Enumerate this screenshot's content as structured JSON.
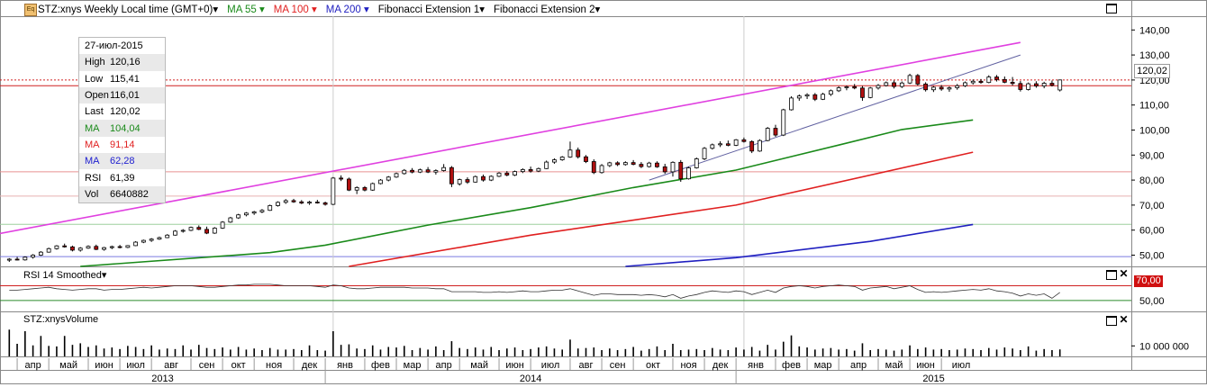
{
  "header": {
    "symbol": "STZ:xnys Weekly Local time (GMT+0)",
    "eq_badge": "Eq",
    "ma55": "MA 55",
    "ma100": "MA 100",
    "ma200": "MA 200",
    "fib1": "Fibonacci Extension 1",
    "fib2": "Fibonacci Extension 2",
    "dropdown_glyph": "▾"
  },
  "info_box": {
    "date": "27-июл-2015",
    "rows": [
      {
        "label": "High",
        "value": "120,16",
        "color": "#000000"
      },
      {
        "label": "Low",
        "value": "115,41",
        "color": "#000000"
      },
      {
        "label": "Open",
        "value": "116,01",
        "color": "#000000"
      },
      {
        "label": "Last",
        "value": "120,02",
        "color": "#000000"
      },
      {
        "label": "MA",
        "value": "104,04",
        "color": "#1a8a1a"
      },
      {
        "label": "MA",
        "value": "91,14",
        "color": "#e02020"
      },
      {
        "label": "MA",
        "value": "62,28",
        "color": "#2020d0"
      },
      {
        "label": "RSI",
        "value": "61,39",
        "color": "#000000"
      },
      {
        "label": "Vol",
        "value": "6640882",
        "color": "#000000"
      }
    ]
  },
  "last_price_tag": "120,02",
  "rsi_pane": {
    "label": "RSI 14 Smoothed",
    "tag": "70,00",
    "ticks": [
      "50,00"
    ]
  },
  "volume_pane": {
    "label": "STZ:xnysVolume",
    "ticks": [
      "10 000 000"
    ]
  },
  "x_axis": {
    "months": [
      "апр",
      "май",
      "июн",
      "июл",
      "авг",
      "сен",
      "окт",
      "ноя",
      "дек",
      "янв",
      "фев",
      "мар",
      "апр",
      "май",
      "июн",
      "июл",
      "авг",
      "сен",
      "окт",
      "ноя",
      "дек",
      "янв",
      "фев",
      "мар",
      "апр",
      "май",
      "июн",
      "июл"
    ],
    "years": [
      "2013",
      "2014",
      "2015"
    ]
  },
  "colors": {
    "up_candle": "#ffffff",
    "down_candle": "#b01010",
    "ma55": "#1a8a1a",
    "ma100": "#e02020",
    "ma200": "#2020c0",
    "fib_channel": "#e040e0",
    "fib_line": "#6060a0"
  },
  "chart_data": {
    "type": "candlestick",
    "title": "STZ:xnys Weekly",
    "y_ticks": [
      50,
      60,
      70,
      80,
      90,
      100,
      110,
      120,
      130,
      140
    ],
    "y_tick_labels": [
      "50,00",
      "60,00",
      "70,00",
      "80,00",
      "90,00",
      "100,00",
      "110,00",
      "120,00",
      "130,00",
      "140,00"
    ],
    "ylim": [
      45.5,
      145.5
    ],
    "x_start": "2013-03-25",
    "week_step_days": 7,
    "candles": [
      [
        48.0,
        48.8,
        47.3,
        48.4
      ],
      [
        48.4,
        49.3,
        47.9,
        48.1
      ],
      [
        48.1,
        49.5,
        47.8,
        49.2
      ],
      [
        49.2,
        50.4,
        48.6,
        50.0
      ],
      [
        50.0,
        51.6,
        49.7,
        51.2
      ],
      [
        51.2,
        53.0,
        51.0,
        52.6
      ],
      [
        52.6,
        54.0,
        52.2,
        53.7
      ],
      [
        53.7,
        54.6,
        53.0,
        53.3
      ],
      [
        53.3,
        53.8,
        51.5,
        52.0
      ],
      [
        52.0,
        53.2,
        51.4,
        52.8
      ],
      [
        52.8,
        53.9,
        52.5,
        53.5
      ],
      [
        53.5,
        54.2,
        52.0,
        52.3
      ],
      [
        52.3,
        53.3,
        51.8,
        53.0
      ],
      [
        53.0,
        53.8,
        52.4,
        53.4
      ],
      [
        53.4,
        54.1,
        52.7,
        53.1
      ],
      [
        53.1,
        54.0,
        52.8,
        53.8
      ],
      [
        53.8,
        55.6,
        53.6,
        55.2
      ],
      [
        55.2,
        56.2,
        54.8,
        55.9
      ],
      [
        55.9,
        56.8,
        55.3,
        56.4
      ],
      [
        56.4,
        57.4,
        56.1,
        57.0
      ],
      [
        57.0,
        58.4,
        56.8,
        58.0
      ],
      [
        58.0,
        60.0,
        57.8,
        59.6
      ],
      [
        59.6,
        60.4,
        59.0,
        59.9
      ],
      [
        59.9,
        61.4,
        59.6,
        61.1
      ],
      [
        61.1,
        61.9,
        60.0,
        60.3
      ],
      [
        60.3,
        61.4,
        58.4,
        58.8
      ],
      [
        58.8,
        61.2,
        58.5,
        60.8
      ],
      [
        60.8,
        63.6,
        60.5,
        63.2
      ],
      [
        63.2,
        65.3,
        62.9,
        64.9
      ],
      [
        64.9,
        66.5,
        64.5,
        66.1
      ],
      [
        66.1,
        67.2,
        65.5,
        66.8
      ],
      [
        66.8,
        67.7,
        66.1,
        67.3
      ],
      [
        67.3,
        68.4,
        66.8,
        67.9
      ],
      [
        67.9,
        70.2,
        67.7,
        69.8
      ],
      [
        69.8,
        71.5,
        69.4,
        71.1
      ],
      [
        71.1,
        72.4,
        70.5,
        71.8
      ],
      [
        71.8,
        72.5,
        70.9,
        71.3
      ],
      [
        71.3,
        72.0,
        70.4,
        70.8
      ],
      [
        70.8,
        71.7,
        70.1,
        71.2
      ],
      [
        71.2,
        72.1,
        70.6,
        70.9
      ],
      [
        70.9,
        71.4,
        69.8,
        70.3
      ],
      [
        70.3,
        81.2,
        70.0,
        80.8
      ],
      [
        80.8,
        81.9,
        79.6,
        80.4
      ],
      [
        80.4,
        81.0,
        75.6,
        76.0
      ],
      [
        76.0,
        77.5,
        74.4,
        77.0
      ],
      [
        77.0,
        77.6,
        75.5,
        76.0
      ],
      [
        76.0,
        79.0,
        75.7,
        78.6
      ],
      [
        78.6,
        80.4,
        78.3,
        80.0
      ],
      [
        80.0,
        81.6,
        79.5,
        81.2
      ],
      [
        81.2,
        83.0,
        80.9,
        82.6
      ],
      [
        82.6,
        84.4,
        82.2,
        83.9
      ],
      [
        83.9,
        84.8,
        82.7,
        83.2
      ],
      [
        83.2,
        84.6,
        82.8,
        84.1
      ],
      [
        84.1,
        85.2,
        82.8,
        83.2
      ],
      [
        83.2,
        84.3,
        82.2,
        83.8
      ],
      [
        83.8,
        86.4,
        83.4,
        85.0
      ],
      [
        85.0,
        85.6,
        77.2,
        78.5
      ],
      [
        78.5,
        80.6,
        77.8,
        80.2
      ],
      [
        80.2,
        81.1,
        78.5,
        79.2
      ],
      [
        79.2,
        81.8,
        79.0,
        81.4
      ],
      [
        81.4,
        82.2,
        79.4,
        80.0
      ],
      [
        80.0,
        81.9,
        79.6,
        81.5
      ],
      [
        81.5,
        83.2,
        81.2,
        82.8
      ],
      [
        82.8,
        83.6,
        81.5,
        82.0
      ],
      [
        82.0,
        83.8,
        81.6,
        83.4
      ],
      [
        83.4,
        84.7,
        82.8,
        84.2
      ],
      [
        84.2,
        85.4,
        83.0,
        83.6
      ],
      [
        83.6,
        85.0,
        83.2,
        84.6
      ],
      [
        84.6,
        87.8,
        84.4,
        87.2
      ],
      [
        87.2,
        88.7,
        86.5,
        88.1
      ],
      [
        88.1,
        89.6,
        87.7,
        89.2
      ],
      [
        89.2,
        95.4,
        88.9,
        92.0
      ],
      [
        92.0,
        93.0,
        88.6,
        89.3
      ],
      [
        89.3,
        90.0,
        86.8,
        87.4
      ],
      [
        87.4,
        88.3,
        82.4,
        83.0
      ],
      [
        83.0,
        86.4,
        82.6,
        85.8
      ],
      [
        85.8,
        87.3,
        85.2,
        86.9
      ],
      [
        86.9,
        87.5,
        85.6,
        86.2
      ],
      [
        86.2,
        87.5,
        85.8,
        87.0
      ],
      [
        87.0,
        88.0,
        85.9,
        86.3
      ],
      [
        86.3,
        87.2,
        84.8,
        85.4
      ],
      [
        85.4,
        87.3,
        85.0,
        86.8
      ],
      [
        86.8,
        87.5,
        84.9,
        85.3
      ],
      [
        85.3,
        86.5,
        82.5,
        83.3
      ],
      [
        83.3,
        87.5,
        81.4,
        87.1
      ],
      [
        87.1,
        88.0,
        79.3,
        80.5
      ],
      [
        80.5,
        85.3,
        80.2,
        84.9
      ],
      [
        84.9,
        89.0,
        84.6,
        88.5
      ],
      [
        88.5,
        93.2,
        88.0,
        92.7
      ],
      [
        92.7,
        94.6,
        92.2,
        94.1
      ],
      [
        94.1,
        95.5,
        93.2,
        94.5
      ],
      [
        94.5,
        95.8,
        93.5,
        93.9
      ],
      [
        93.9,
        96.4,
        93.6,
        96.1
      ],
      [
        96.1,
        97.0,
        95.0,
        95.4
      ],
      [
        95.4,
        95.9,
        90.8,
        91.6
      ],
      [
        91.6,
        96.3,
        91.3,
        95.8
      ],
      [
        95.8,
        101.2,
        95.5,
        100.7
      ],
      [
        100.7,
        102.1,
        97.3,
        98.0
      ],
      [
        98.0,
        108.5,
        97.6,
        108.1
      ],
      [
        108.1,
        113.5,
        107.8,
        112.8
      ],
      [
        112.8,
        114.2,
        111.7,
        113.6
      ],
      [
        113.6,
        114.7,
        112.4,
        114.1
      ],
      [
        114.1,
        114.8,
        111.6,
        112.3
      ],
      [
        112.3,
        114.9,
        112.0,
        114.3
      ],
      [
        114.3,
        116.2,
        113.6,
        115.7
      ],
      [
        115.7,
        117.5,
        115.2,
        116.9
      ],
      [
        116.9,
        117.8,
        115.9,
        117.3
      ],
      [
        117.3,
        118.4,
        116.3,
        116.8
      ],
      [
        116.8,
        117.6,
        111.7,
        113.0
      ],
      [
        113.0,
        117.2,
        112.7,
        116.8
      ],
      [
        116.8,
        118.4,
        116.2,
        117.8
      ],
      [
        117.8,
        119.4,
        117.4,
        118.9
      ],
      [
        118.9,
        119.8,
        116.6,
        117.4
      ],
      [
        117.4,
        119.4,
        116.8,
        118.8
      ],
      [
        118.8,
        122.5,
        118.4,
        121.8
      ],
      [
        121.8,
        122.4,
        117.8,
        118.4
      ],
      [
        118.4,
        119.1,
        115.4,
        116.1
      ],
      [
        116.1,
        117.6,
        115.2,
        117.1
      ],
      [
        117.1,
        118.0,
        115.7,
        116.4
      ],
      [
        116.4,
        117.4,
        115.3,
        116.9
      ],
      [
        116.9,
        118.4,
        116.1,
        117.7
      ],
      [
        117.7,
        119.4,
        117.2,
        118.9
      ],
      [
        118.9,
        120.2,
        118.2,
        119.5
      ],
      [
        119.5,
        120.4,
        118.5,
        119.0
      ],
      [
        119.0,
        121.9,
        118.7,
        121.2
      ],
      [
        121.2,
        122.0,
        119.4,
        120.2
      ],
      [
        120.2,
        121.4,
        118.7,
        119.1
      ],
      [
        119.1,
        121.2,
        117.8,
        118.6
      ],
      [
        118.6,
        119.6,
        115.4,
        116.2
      ],
      [
        116.2,
        119.0,
        115.8,
        118.5
      ],
      [
        118.5,
        119.5,
        116.9,
        117.6
      ],
      [
        117.6,
        119.3,
        116.7,
        118.7
      ],
      [
        118.7,
        119.8,
        117.4,
        117.9
      ],
      [
        116.01,
        120.16,
        115.41,
        120.02
      ]
    ],
    "moving_averages": [
      {
        "name": "MA 55",
        "color": "#1a8a1a",
        "points": [
          [
            "2013-05-27",
            45.5
          ],
          [
            "2013-11-11",
            51.0
          ],
          [
            "2013-12-30",
            54.0
          ],
          [
            "2014-03-31",
            62.0
          ],
          [
            "2014-06-30",
            69.0
          ],
          [
            "2014-09-29",
            77.0
          ],
          [
            "2014-12-29",
            84.0
          ],
          [
            "2015-03-30",
            94.0
          ],
          [
            "2015-05-25",
            100.2
          ],
          [
            "2015-07-27",
            104.04
          ]
        ]
      },
      {
        "name": "MA 100",
        "color": "#e02020",
        "points": [
          [
            "2014-01-20",
            45.5
          ],
          [
            "2014-06-30",
            58.0
          ],
          [
            "2014-12-29",
            70.0
          ],
          [
            "2015-07-27",
            91.14
          ]
        ]
      },
      {
        "name": "MA 200",
        "color": "#2020c0",
        "points": [
          [
            "2014-09-22",
            45.5
          ],
          [
            "2014-12-29",
            49.0
          ],
          [
            "2015-04-27",
            55.5
          ],
          [
            "2015-07-27",
            62.28
          ]
        ]
      }
    ],
    "fibonacci_lines": [
      {
        "name": "Fibonacci Extension 1",
        "color": "#e040e0",
        "points": [
          [
            "2013-02-25",
            57.0
          ],
          [
            "2015-09-07",
            135.0
          ]
        ]
      },
      {
        "name": "Fibonacci Extension 2",
        "color": "#6060a0",
        "points": [
          [
            "2014-10-13",
            80.0
          ],
          [
            "2015-09-07",
            130.0
          ]
        ]
      }
    ],
    "horizontal_levels": [
      {
        "value": 120.02,
        "color": "#d02020",
        "style": "dotted"
      },
      {
        "value": 117.7,
        "color": "#d02020",
        "style": "solid"
      },
      {
        "value": 83.3,
        "color": "#e89090",
        "style": "solid"
      },
      {
        "value": 73.6,
        "color": "#e8b0b0",
        "style": "solid"
      },
      {
        "value": 62.3,
        "color": "#9ed09e",
        "style": "solid"
      },
      {
        "value": 49.4,
        "color": "#7a7ae0",
        "style": "solid"
      }
    ],
    "rsi": {
      "name": "RSI 14 Smoothed",
      "levels": [
        70,
        50
      ],
      "ylim": [
        40,
        78
      ],
      "values": [
        64,
        64,
        65,
        66,
        67,
        68,
        66,
        65,
        64,
        65,
        66,
        66,
        64,
        65,
        65,
        66,
        67,
        68,
        67,
        68,
        69,
        70,
        70,
        70,
        69,
        68,
        68,
        69,
        70,
        71,
        71,
        72,
        72,
        72,
        71,
        70,
        70,
        70,
        70,
        69,
        68,
        71,
        70,
        67,
        66,
        66,
        67,
        68,
        68,
        68,
        68,
        67,
        67,
        67,
        66,
        66,
        62,
        62,
        62,
        62,
        61,
        61,
        62,
        61,
        62,
        63,
        62,
        62,
        63,
        64,
        64,
        66,
        63,
        60,
        57,
        59,
        59,
        58,
        58,
        58,
        57,
        58,
        57,
        55,
        58,
        53,
        56,
        58,
        61,
        63,
        62,
        61,
        63,
        62,
        58,
        61,
        64,
        61,
        67,
        69,
        70,
        69,
        67,
        69,
        70,
        71,
        70,
        69,
        64,
        67,
        68,
        69,
        66,
        68,
        70,
        65,
        61,
        62,
        61,
        62,
        63,
        64,
        65,
        64,
        66,
        63,
        62,
        60,
        56,
        59,
        57,
        59,
        53,
        61
      ]
    },
    "volume": {
      "name": "STZ:xnysVolume",
      "ylim": [
        0,
        30000000
      ],
      "values": [
        25500000,
        12000000,
        24000000,
        10500000,
        19500000,
        10000000,
        9500000,
        19500000,
        11000000,
        12500000,
        9000000,
        10500000,
        7500000,
        8500000,
        7000000,
        10000000,
        9000000,
        7000000,
        10500000,
        6500000,
        7500000,
        7000000,
        10500000,
        6500000,
        11000000,
        8000000,
        7000000,
        8500000,
        6500000,
        9000000,
        6500000,
        7500000,
        6000000,
        8000000,
        6500000,
        6500000,
        7000000,
        6000000,
        10500000,
        6000000,
        5500000,
        24000000,
        11000000,
        11500000,
        7500000,
        7000000,
        10500000,
        6500000,
        9000000,
        8500000,
        10000000,
        6000000,
        8000000,
        6500000,
        9500000,
        6000000,
        14500000,
        8000000,
        7000000,
        8500000,
        6500000,
        9000000,
        6000000,
        7500000,
        8500000,
        6000000,
        7000000,
        8500000,
        9500000,
        7500000,
        6500000,
        16000000,
        7500000,
        8000000,
        8500000,
        6000000,
        7500000,
        6000000,
        7000000,
        9000000,
        5500000,
        7000000,
        9500000,
        6000000,
        12000000,
        6000000,
        6500000,
        7000000,
        6000000,
        8000000,
        6500000,
        6000000,
        8500000,
        6500000,
        9000000,
        5500000,
        11000000,
        6500000,
        14000000,
        20000000,
        9500000,
        8500000,
        6500000,
        7500000,
        8000000,
        6500000,
        7000000,
        5500000,
        12500000,
        6000000,
        7000000,
        6500000,
        5500000,
        6500000,
        10500000,
        7000000,
        8500000,
        6500000,
        7000000,
        6000000,
        6500000,
        7500000,
        7000000,
        6000000,
        8000000,
        6500000,
        8500000,
        7500000,
        6000000,
        9500000,
        5500000,
        7000000,
        6000000,
        6640882
      ]
    }
  }
}
